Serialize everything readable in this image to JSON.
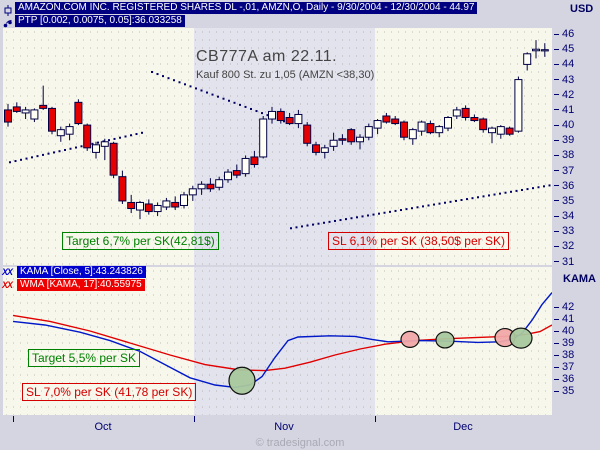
{
  "header": {
    "line1": "AMAZON.COM INC. REGISTERED SHARES DL -,01, AMZN,O, Daily - 9/30/2004 - 12/30/2004 - 44.97",
    "line2": "PTP [0.002, 0.0075, 0.05]:36.033258",
    "currency_label": "USD"
  },
  "main_chart": {
    "y_axis_labels": [
      46,
      45,
      44,
      43,
      42,
      41,
      40,
      39,
      38,
      37,
      36,
      35,
      34,
      33,
      32,
      31
    ],
    "annotations": {
      "trade_title": "CB777A am 22.11.",
      "trade_detail": "Kauf 800 St. zu 1,05 (AMZN <38,30)",
      "target_label": "Target 6,7% per SK(42,81$)",
      "stop_loss_label": "SL 6,1% per SK (38,50$ per SK)"
    }
  },
  "lower_panel": {
    "axis_title": "KAMA",
    "y_axis_labels": [
      42,
      41,
      40,
      39,
      38,
      37,
      36,
      35
    ],
    "legend": [
      {
        "icon": "XX",
        "text": "KAMA [Close, 5]:43.243826",
        "bg": "#0000cc"
      },
      {
        "icon": "XX",
        "text": "WMA [KAMA, 17]:40.55975",
        "bg": "#ee0000"
      }
    ],
    "annotations": {
      "target_label": "Target 5,5% per SK",
      "stop_loss_label": "SL 7,0% per SK (41,78 per SK)"
    }
  },
  "x_axis": {
    "months": [
      {
        "label": "Oct",
        "center": 103
      },
      {
        "label": "Nov",
        "center": 284
      },
      {
        "label": "Dec",
        "center": 463
      }
    ],
    "ticks": [
      13,
      194,
      375
    ]
  },
  "watermark": "© tradesignal.com",
  "colors": {
    "accent_navy": "#000080",
    "bull_fill": "#fffff6",
    "bear_fill": "#e60000",
    "candle_stroke": "#000045",
    "kama_line": "#0018c8",
    "wma_line": "#e00000",
    "target_green": "#008000",
    "stop_red": "#d40000",
    "band": "#e3e3ed",
    "plot_bg": "#f7f7ec",
    "marker_green": "#a8c89e",
    "marker_red": "#f0a8a8"
  },
  "chart_data": {
    "type": "candlestick",
    "title": "AMZN Daily 9/30/2004 - 12/30/2004, close 44.97",
    "highlight_band": {
      "x0": 194,
      "x1": 375
    },
    "main": {
      "ylim": [
        30.8,
        46.4
      ],
      "x_start": 8,
      "x_step": 8.8,
      "candles": [
        [
          41.0,
          41.4,
          39.9,
          40.2
        ],
        [
          41.2,
          41.5,
          40.8,
          40.9
        ],
        [
          40.8,
          41.2,
          40.4,
          41.0
        ],
        [
          40.4,
          41.1,
          40.2,
          41.0
        ],
        [
          41.3,
          42.6,
          41.0,
          41.1
        ],
        [
          41.1,
          41.2,
          39.4,
          39.6
        ],
        [
          39.3,
          39.9,
          38.9,
          39.7
        ],
        [
          39.4,
          40.1,
          39.0,
          39.9
        ],
        [
          41.5,
          41.7,
          40.0,
          40.1
        ],
        [
          40.0,
          40.1,
          38.3,
          38.5
        ],
        [
          38.2,
          38.9,
          37.8,
          38.7
        ],
        [
          38.6,
          39.1,
          37.7,
          38.9
        ],
        [
          38.8,
          38.9,
          36.5,
          36.7
        ],
        [
          36.6,
          37.0,
          34.8,
          35.0
        ],
        [
          34.9,
          35.4,
          34.2,
          34.5
        ],
        [
          34.4,
          35.0,
          33.8,
          34.9
        ],
        [
          34.8,
          35.1,
          34.1,
          34.3
        ],
        [
          34.3,
          34.9,
          34.0,
          34.7
        ],
        [
          34.6,
          35.2,
          34.4,
          35.0
        ],
        [
          34.9,
          35.3,
          34.4,
          34.6
        ],
        [
          34.7,
          35.6,
          34.5,
          35.4
        ],
        [
          35.4,
          36.0,
          35.0,
          35.8
        ],
        [
          35.8,
          36.3,
          35.4,
          36.1
        ],
        [
          36.1,
          36.5,
          35.6,
          35.8
        ],
        [
          35.9,
          36.6,
          35.7,
          36.4
        ],
        [
          36.4,
          37.1,
          36.2,
          36.9
        ],
        [
          37.0,
          37.4,
          36.5,
          36.7
        ],
        [
          36.8,
          38.0,
          36.6,
          37.8
        ],
        [
          37.9,
          38.3,
          37.2,
          37.4
        ],
        [
          37.9,
          40.6,
          37.8,
          40.4
        ],
        [
          40.4,
          41.2,
          40.1,
          40.9
        ],
        [
          40.9,
          41.1,
          40.1,
          40.3
        ],
        [
          40.5,
          40.8,
          40.0,
          40.1
        ],
        [
          40.1,
          41.0,
          39.8,
          40.7
        ],
        [
          40.0,
          40.2,
          38.6,
          38.8
        ],
        [
          38.7,
          38.9,
          38.0,
          38.2
        ],
        [
          38.2,
          38.7,
          37.8,
          38.5
        ],
        [
          38.6,
          39.5,
          38.3,
          39.0
        ],
        [
          39.1,
          39.4,
          38.7,
          39.0
        ],
        [
          39.7,
          39.8,
          38.7,
          38.9
        ],
        [
          38.9,
          39.4,
          38.4,
          39.2
        ],
        [
          39.2,
          40.1,
          39.0,
          39.9
        ],
        [
          39.8,
          40.4,
          39.4,
          40.3
        ],
        [
          40.6,
          40.8,
          40.1,
          40.2
        ],
        [
          40.4,
          40.6,
          40.0,
          40.1
        ],
        [
          40.2,
          40.3,
          39.0,
          39.2
        ],
        [
          39.1,
          39.8,
          38.7,
          39.7
        ],
        [
          39.6,
          40.3,
          39.3,
          40.2
        ],
        [
          40.1,
          40.3,
          39.4,
          39.5
        ],
        [
          39.5,
          40.0,
          39.2,
          39.9
        ],
        [
          39.8,
          40.6,
          39.6,
          40.5
        ],
        [
          40.6,
          41.2,
          40.4,
          41.0
        ],
        [
          41.1,
          41.3,
          40.3,
          40.5
        ],
        [
          40.5,
          40.7,
          40.2,
          40.3
        ],
        [
          40.4,
          40.5,
          39.5,
          39.7
        ],
        [
          39.5,
          39.9,
          38.8,
          39.8
        ],
        [
          39.4,
          40.0,
          39.1,
          39.9
        ],
        [
          39.8,
          39.9,
          39.3,
          39.4
        ],
        [
          39.6,
          43.2,
          39.5,
          43.0
        ],
        [
          44.0,
          44.8,
          43.6,
          44.7
        ],
        [
          44.9,
          45.6,
          44.4,
          45.0
        ],
        [
          44.9,
          45.4,
          44.5,
          44.97
        ]
      ],
      "ptp_value": 36.033258,
      "ptp_dotted_segments": [
        [
          [
            10,
            37.55
          ],
          [
            146,
            39.55
          ]
        ],
        [
          [
            152,
            43.5
          ],
          [
            286,
            40.2
          ]
        ],
        [
          [
            291,
            33.2
          ],
          [
            552,
            36.05
          ]
        ]
      ]
    },
    "lower": {
      "ylim": [
        33.0,
        45.33
      ],
      "kama_value": 43.243826,
      "wma_value": 40.55975,
      "kama_points": [
        [
          13,
          40.8
        ],
        [
          45,
          40.5
        ],
        [
          80,
          39.9
        ],
        [
          110,
          39.2
        ],
        [
          140,
          38.3
        ],
        [
          165,
          37.2
        ],
        [
          190,
          36.1
        ],
        [
          215,
          35.5
        ],
        [
          235,
          35.3
        ],
        [
          250,
          35.5
        ],
        [
          262,
          36.2
        ],
        [
          275,
          37.8
        ],
        [
          288,
          39.2
        ],
        [
          298,
          39.5
        ],
        [
          330,
          39.6
        ],
        [
          355,
          39.55
        ],
        [
          372,
          39.3
        ],
        [
          388,
          39.1
        ],
        [
          420,
          39.2
        ],
        [
          450,
          39.15
        ],
        [
          478,
          39.05
        ],
        [
          500,
          39.1
        ],
        [
          512,
          39.3
        ],
        [
          522,
          39.8
        ],
        [
          532,
          40.9
        ],
        [
          542,
          42.2
        ],
        [
          552,
          43.2
        ]
      ],
      "wma_points": [
        [
          13,
          41.3
        ],
        [
          50,
          40.8
        ],
        [
          90,
          40.0
        ],
        [
          130,
          39.0
        ],
        [
          170,
          38.0
        ],
        [
          205,
          37.2
        ],
        [
          240,
          36.75
        ],
        [
          265,
          36.7
        ],
        [
          285,
          36.9
        ],
        [
          310,
          37.4
        ],
        [
          335,
          38.0
        ],
        [
          360,
          38.5
        ],
        [
          385,
          38.9
        ],
        [
          415,
          39.2
        ],
        [
          445,
          39.35
        ],
        [
          475,
          39.45
        ],
        [
          505,
          39.55
        ],
        [
          525,
          39.7
        ],
        [
          540,
          39.95
        ],
        [
          552,
          40.5
        ]
      ],
      "markers": [
        [
          242,
          35.85,
          "green",
          13,
          13.5
        ],
        [
          410,
          39.3,
          "red",
          9,
          8
        ],
        [
          445,
          39.25,
          "green",
          9,
          8
        ],
        [
          505,
          39.45,
          "red",
          10,
          9
        ],
        [
          521,
          39.4,
          "green",
          11,
          10
        ]
      ]
    }
  }
}
